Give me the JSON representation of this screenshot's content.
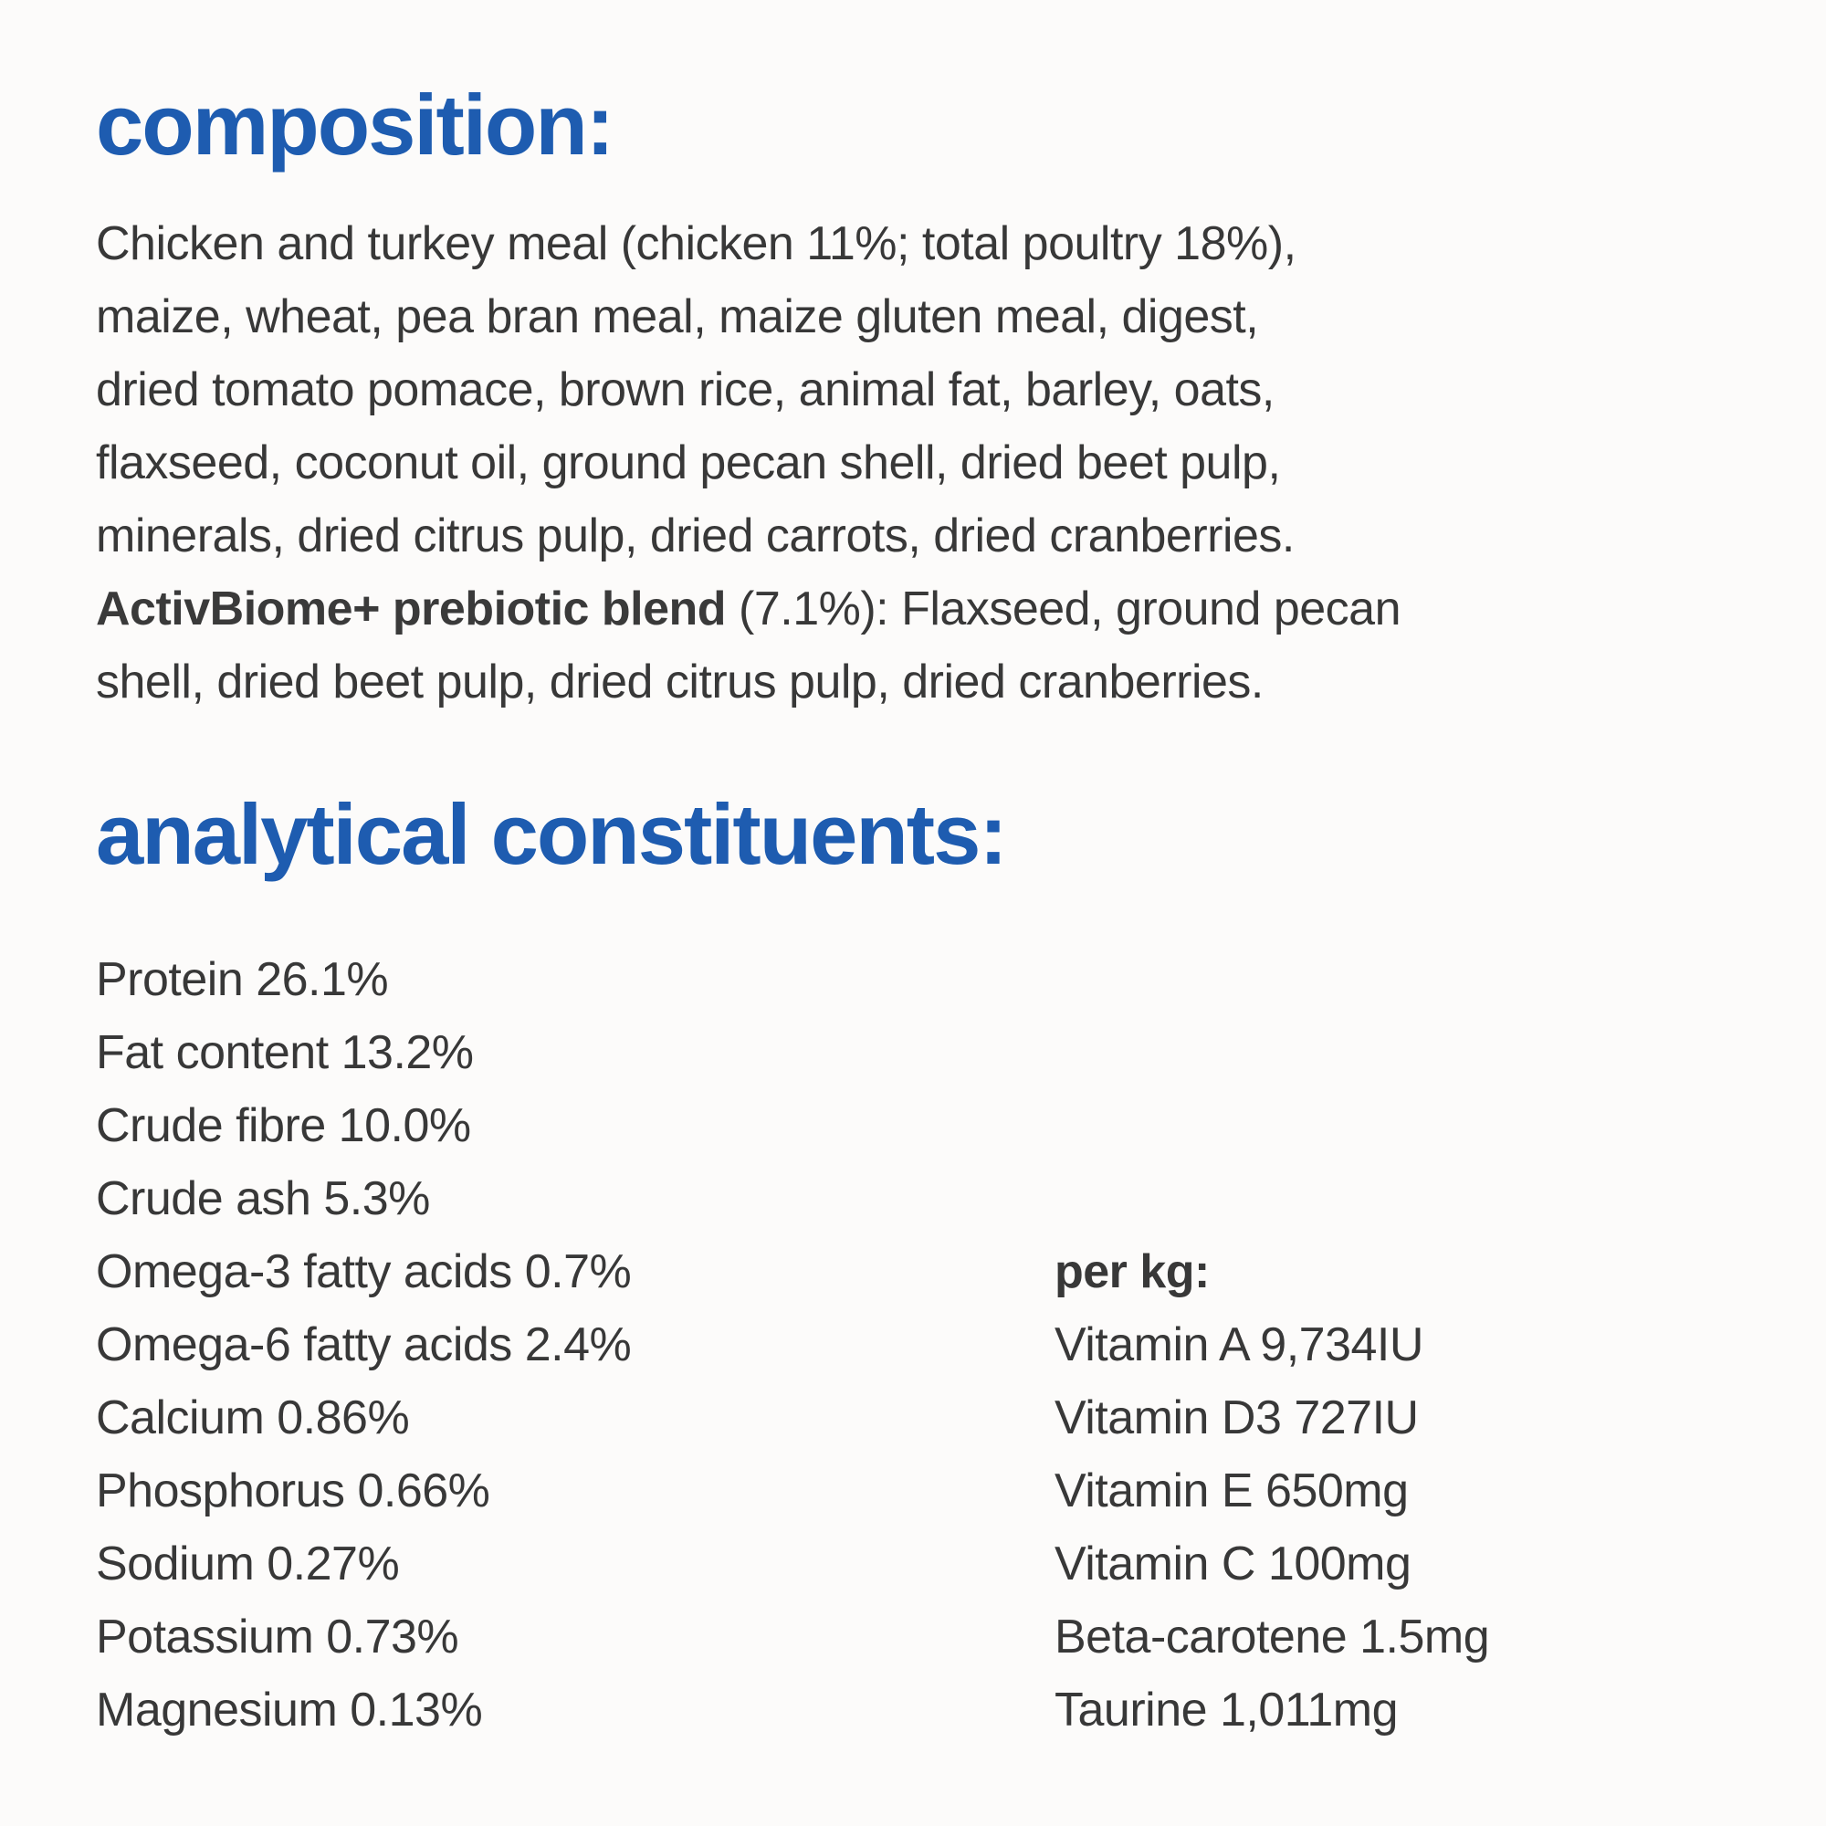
{
  "page": {
    "background_color": "#fcfbfa",
    "heading_color": "#1e5cb0",
    "body_text_color": "#383838"
  },
  "composition": {
    "heading": "composition:",
    "lines": [
      "Chicken and turkey meal (chicken 11%; total poultry 18%),",
      "maize, wheat, pea bran meal, maize gluten meal, digest,",
      "dried tomato pomace, brown rice, animal fat, barley, oats,",
      "flaxseed, coconut oil, ground pecan shell, dried beet pulp,",
      "minerals, dried citrus pulp, dried carrots, dried cranberries."
    ],
    "prebiotic_bold": "ActivBiome+ prebiotic blend",
    "prebiotic_rest": " (7.1%): Flaxseed, ground pecan",
    "prebiotic_cont": "shell, dried beet pulp, dried citrus pulp, dried cranberries."
  },
  "analytical": {
    "heading": "analytical constituents:",
    "left_items": [
      "Protein 26.1%",
      "Fat content 13.2%",
      "Crude fibre 10.0%",
      "Crude ash 5.3%",
      "Omega-3 fatty acids 0.7%",
      "Omega-6 fatty acids 2.4%",
      "Calcium 0.86%",
      "Phosphorus 0.66%",
      "Sodium 0.27%",
      "Potassium 0.73%",
      "Magnesium 0.13%"
    ],
    "per_kg_label": "per kg:",
    "right_items": [
      "Vitamin A 9,734IU",
      "Vitamin D3 727IU",
      "Vitamin E 650mg",
      "Vitamin C 100mg",
      "Beta-carotene 1.5mg",
      "Taurine 1,011mg"
    ]
  }
}
